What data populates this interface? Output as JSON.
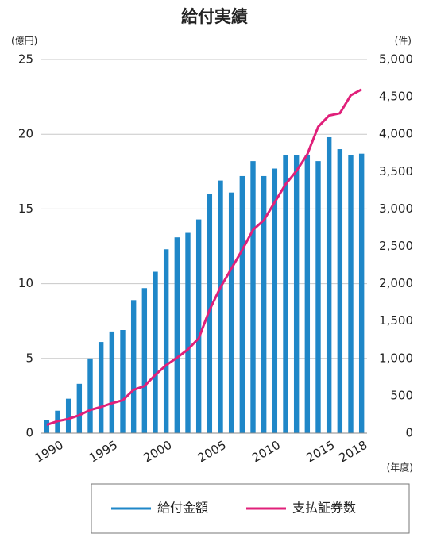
{
  "chart_data": {
    "type": "bar_line",
    "title": "給付実績",
    "y_label": "(億円)",
    "y2_label": "(件)",
    "x_label": "(年度)",
    "categories": [
      null,
      "1990",
      null,
      null,
      null,
      null,
      "1995",
      null,
      null,
      null,
      null,
      "2000",
      null,
      null,
      null,
      null,
      "2005",
      null,
      null,
      null,
      null,
      "2010",
      null,
      null,
      null,
      null,
      "2015",
      null,
      null,
      "2018"
    ],
    "series": [
      {
        "name": "給付金額",
        "color": "#1f87c8",
        "kind": "bar",
        "values": [
          0.9,
          1.5,
          2.3,
          3.3,
          5.0,
          6.1,
          6.8,
          6.9,
          8.9,
          9.7,
          10.8,
          12.3,
          13.1,
          13.4,
          14.3,
          16.0,
          16.9,
          16.1,
          17.2,
          18.2,
          17.2,
          17.7,
          18.6,
          18.6,
          18.6,
          18.2,
          19.8,
          19.0,
          18.6,
          18.7
        ]
      },
      {
        "name": "支払証券数",
        "color": "#e0207a",
        "kind": "line",
        "axis": "y2",
        "values": [
          110,
          160,
          190,
          240,
          310,
          350,
          400,
          440,
          580,
          630,
          780,
          910,
          1010,
          1120,
          1270,
          1650,
          1950,
          2200,
          2450,
          2720,
          2850,
          3090,
          3330,
          3510,
          3730,
          4100,
          4250,
          4280,
          4520,
          4600
        ]
      }
    ],
    "ylim": [
      0,
      25
    ],
    "yticks": [
      0,
      5,
      10,
      15,
      20,
      25
    ],
    "y2lim": [
      0,
      5000
    ],
    "y2ticks": [
      0,
      500,
      {
        "value": 1000,
        "label": "1,000"
      },
      {
        "value": 1500,
        "label": "1,500"
      },
      {
        "value": 2000,
        "label": "2,000"
      },
      {
        "value": 2500,
        "label": "2,500"
      },
      {
        "value": 3000,
        "label": "3,000"
      },
      {
        "value": 3500,
        "label": "3,500"
      },
      {
        "value": 4000,
        "label": "4,000"
      },
      {
        "value": 4500,
        "label": "4,500"
      },
      {
        "value": 5000,
        "label": "5,000"
      }
    ],
    "grid": true
  }
}
